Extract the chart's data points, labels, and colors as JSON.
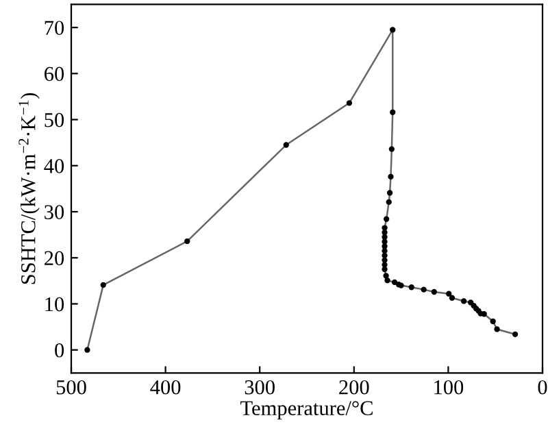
{
  "chart_data": {
    "type": "line",
    "xlabel": "Temperature/°C",
    "ylabel": "SSHTC/(kW·m$^{−2}$·K$^{−1}$)",
    "xlim": [
      500,
      0
    ],
    "xticks": [
      500,
      400,
      300,
      200,
      100,
      0
    ],
    "ylim": [
      -5,
      75
    ],
    "yticks": [
      0,
      10,
      20,
      30,
      40,
      50,
      60,
      70
    ],
    "marker": "circle",
    "line_style": "solid",
    "grid": false,
    "series": [
      {
        "color": "#666666",
        "x": [
          483,
          466,
          377,
          272,
          205,
          159,
          159,
          160,
          161,
          162,
          163,
          165.6,
          167.5,
          167.5,
          167.5,
          167.5,
          167.5,
          167.5,
          167.5,
          167.5,
          167.5,
          167.5,
          166,
          164.6,
          157,
          152.6,
          150,
          139,
          126,
          115,
          99.4,
          96,
          83.5,
          76.2,
          73,
          70.5,
          68,
          65.7,
          62,
          52.6,
          48.3,
          29
        ],
        "values": [
          0,
          14.1,
          23.6,
          44.5,
          53.6,
          69.5,
          51.6,
          43.6,
          37.6,
          34.1,
          32.1,
          28.4,
          26.5,
          25.5,
          24.5,
          23.5,
          22.5,
          21.5,
          20.5,
          19.5,
          18.5,
          17.5,
          16.1,
          15.1,
          14.7,
          14.2,
          14.0,
          13.6,
          13.1,
          12.6,
          12.2,
          11.3,
          10.6,
          10.3,
          9.6,
          9.0,
          8.5,
          7.9,
          7.8,
          6.2,
          4.5,
          3.4
        ]
      }
    ]
  }
}
